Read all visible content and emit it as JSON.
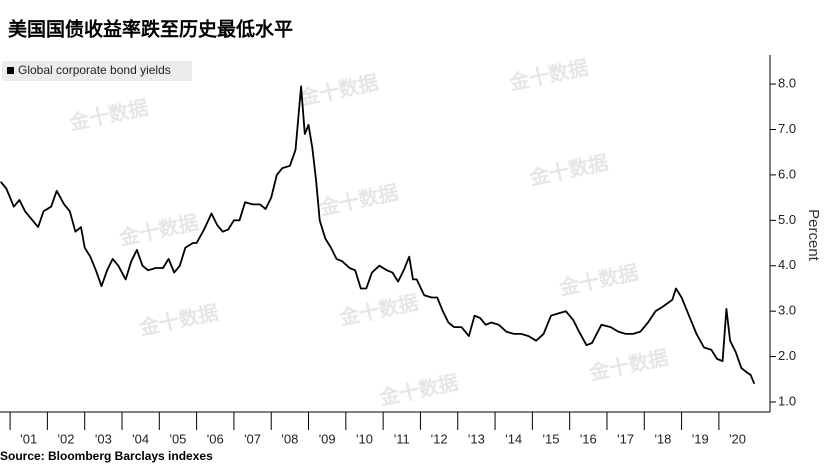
{
  "chart_data": {
    "type": "line",
    "title": "美国国债收益率跌至历史最低水平",
    "y_label": "Percent",
    "source": "Source: Bloomberg Barclays indexes",
    "watermark": "金十数据",
    "legend_position": "upper left",
    "color": "#000000",
    "xlim": [
      2000.73,
      2021.37
    ],
    "xticks": [
      {
        "value": 2001.5,
        "label": "'01"
      },
      {
        "value": 2002.5,
        "label": "'02"
      },
      {
        "value": 2003.5,
        "label": "'03"
      },
      {
        "value": 2004.5,
        "label": "'04"
      },
      {
        "value": 2005.5,
        "label": "'05"
      },
      {
        "value": 2006.5,
        "label": "'06"
      },
      {
        "value": 2007.5,
        "label": "'07"
      },
      {
        "value": 2008.5,
        "label": "'08"
      },
      {
        "value": 2009.5,
        "label": "'09"
      },
      {
        "value": 2010.5,
        "label": "'10"
      },
      {
        "value": 2011.5,
        "label": "'11"
      },
      {
        "value": 2012.5,
        "label": "'12"
      },
      {
        "value": 2013.5,
        "label": "'13"
      },
      {
        "value": 2014.5,
        "label": "'14"
      },
      {
        "value": 2015.5,
        "label": "'15"
      },
      {
        "value": 2016.5,
        "label": "'16"
      },
      {
        "value": 2017.5,
        "label": "'17"
      },
      {
        "value": 2018.5,
        "label": "'18"
      },
      {
        "value": 2019.5,
        "label": "'19"
      },
      {
        "value": 2020.5,
        "label": "'20"
      }
    ],
    "ylim": [
      0.78,
      8.64
    ],
    "yticks": [
      {
        "value": 1,
        "label": "1.0"
      },
      {
        "value": 2,
        "label": "2.0"
      },
      {
        "value": 3,
        "label": "3.0"
      },
      {
        "value": 4,
        "label": "4.0"
      },
      {
        "value": 5,
        "label": "5.0"
      },
      {
        "value": 6,
        "label": "6.0"
      },
      {
        "value": 7,
        "label": "7.0"
      },
      {
        "value": 8,
        "label": "8.0"
      }
    ],
    "series": [
      {
        "name": "Global corporate bond yields",
        "color": "#000000",
        "x": [
          2000.75,
          2000.9,
          2001.0,
          2001.1,
          2001.25,
          2001.4,
          2001.6,
          2001.75,
          2001.9,
          2002.1,
          2002.25,
          2002.45,
          2002.6,
          2002.75,
          2002.9,
          2003.0,
          2003.15,
          2003.3,
          2003.45,
          2003.6,
          2003.75,
          2003.9,
          2004.1,
          2004.25,
          2004.4,
          2004.55,
          2004.7,
          2004.9,
          2005.1,
          2005.25,
          2005.4,
          2005.55,
          2005.7,
          2005.9,
          2006.0,
          2006.2,
          2006.4,
          2006.55,
          2006.7,
          2006.85,
          2007.0,
          2007.15,
          2007.3,
          2007.5,
          2007.7,
          2007.85,
          2008.0,
          2008.15,
          2008.3,
          2008.5,
          2008.65,
          2008.8,
          2008.9,
          2009.0,
          2009.1,
          2009.2,
          2009.3,
          2009.45,
          2009.6,
          2009.75,
          2009.9,
          2010.1,
          2010.25,
          2010.4,
          2010.55,
          2010.7,
          2010.9,
          2011.1,
          2011.25,
          2011.4,
          2011.55,
          2011.7,
          2011.8,
          2011.9,
          2012.1,
          2012.3,
          2012.45,
          2012.6,
          2012.75,
          2012.9,
          2013.1,
          2013.3,
          2013.45,
          2013.6,
          2013.75,
          2013.9,
          2014.1,
          2014.3,
          2014.5,
          2014.7,
          2014.9,
          2015.1,
          2015.3,
          2015.5,
          2015.7,
          2015.9,
          2016.1,
          2016.25,
          2016.45,
          2016.6,
          2016.85,
          2017.1,
          2017.3,
          2017.5,
          2017.7,
          2017.9,
          2018.1,
          2018.3,
          2018.5,
          2018.75,
          2018.85,
          2019.0,
          2019.2,
          2019.4,
          2019.6,
          2019.8,
          2019.95,
          2020.1,
          2020.2,
          2020.3,
          2020.45,
          2020.6,
          2020.75,
          2020.85,
          2020.95
        ],
        "values": [
          5.85,
          5.7,
          5.5,
          5.3,
          5.45,
          5.2,
          5.0,
          4.85,
          5.2,
          5.3,
          5.65,
          5.35,
          5.2,
          4.75,
          4.85,
          4.4,
          4.2,
          3.9,
          3.55,
          3.9,
          4.15,
          4.0,
          3.7,
          4.1,
          4.35,
          4.0,
          3.9,
          3.95,
          3.95,
          4.15,
          3.85,
          4.0,
          4.4,
          4.5,
          4.5,
          4.8,
          5.15,
          4.9,
          4.75,
          4.8,
          5.0,
          5.0,
          5.4,
          5.35,
          5.35,
          5.25,
          5.5,
          6.0,
          6.15,
          6.2,
          6.55,
          7.95,
          6.9,
          7.1,
          6.6,
          5.9,
          5.0,
          4.6,
          4.4,
          4.15,
          4.1,
          3.95,
          3.9,
          3.5,
          3.5,
          3.85,
          4.0,
          3.9,
          3.85,
          3.65,
          3.9,
          4.2,
          3.7,
          3.7,
          3.35,
          3.3,
          3.3,
          3.0,
          2.75,
          2.65,
          2.65,
          2.45,
          2.9,
          2.85,
          2.7,
          2.75,
          2.7,
          2.55,
          2.5,
          2.5,
          2.45,
          2.35,
          2.5,
          2.9,
          2.95,
          3.0,
          2.8,
          2.55,
          2.25,
          2.3,
          2.7,
          2.65,
          2.55,
          2.5,
          2.5,
          2.55,
          2.75,
          3.0,
          3.1,
          3.25,
          3.5,
          3.3,
          2.9,
          2.5,
          2.2,
          2.15,
          1.95,
          1.9,
          3.05,
          2.35,
          2.1,
          1.75,
          1.65,
          1.6,
          1.4
        ]
      }
    ]
  }
}
